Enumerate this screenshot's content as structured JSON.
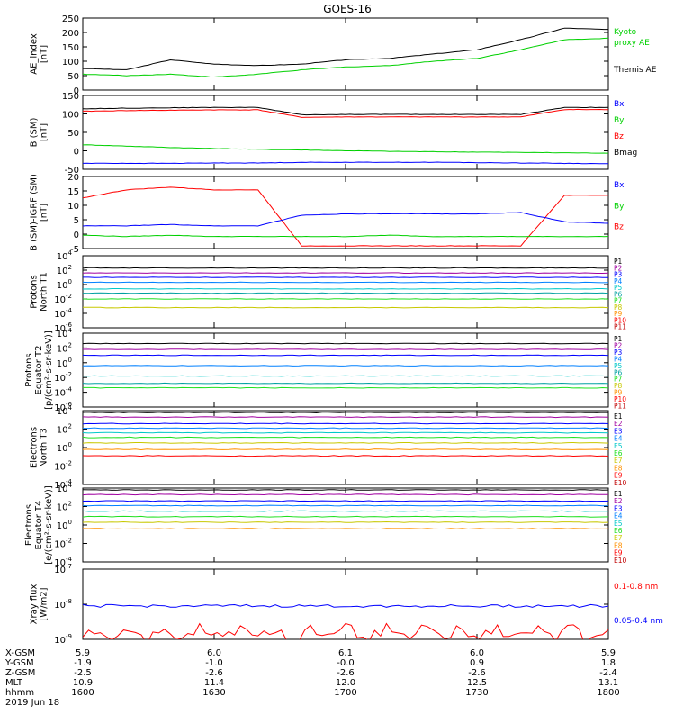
{
  "title": "GOES-16",
  "colors": {
    "axis": "#000000",
    "black": "#000000",
    "green": "#00d000",
    "blue": "#0000ff",
    "red": "#ff0000",
    "cyan": "#00c8c8",
    "lime": "#20e020",
    "yellow": "#c8c800",
    "orange": "#ff9000",
    "purple": "#a000a0",
    "navy": "#0000a0",
    "teal": "#00a0a0",
    "darkred": "#c00000"
  },
  "panels": [
    {
      "id": "ae",
      "ylabel": [
        "AE_index",
        "[nT]"
      ],
      "yticks": [
        "250",
        "200",
        "150",
        "100",
        "50",
        "0"
      ],
      "ylim": [
        0,
        250
      ],
      "legend": [
        {
          "text": "Kyoto",
          "color": "#00d000"
        },
        {
          "text": "proxy AE",
          "color": "#00d000"
        },
        {
          "text": "Themis AE",
          "color": "#000000"
        }
      ]
    },
    {
      "id": "bsm",
      "ylabel": [
        "B (SM)",
        "[nT]"
      ],
      "yticks": [
        "150",
        "100",
        "50",
        "0",
        "-50"
      ],
      "ylim": [
        -60,
        150
      ],
      "legend": [
        {
          "text": "Bx",
          "color": "#0000ff"
        },
        {
          "text": "By",
          "color": "#00d000"
        },
        {
          "text": "Bz",
          "color": "#ff0000"
        },
        {
          "text": "Bmag",
          "color": "#000000"
        }
      ]
    },
    {
      "id": "bigrf",
      "ylabel": [
        "B (SM)-IGRF (SM)",
        "[nT]"
      ],
      "yticks": [
        "20",
        "15",
        "10",
        "5",
        "0",
        "-5"
      ],
      "ylim": [
        -7,
        20
      ],
      "legend": [
        {
          "text": "Bx",
          "color": "#0000ff"
        },
        {
          "text": "By",
          "color": "#00d000"
        },
        {
          "text": "Bz",
          "color": "#ff0000"
        }
      ]
    },
    {
      "id": "pn",
      "ylabel": [
        "Protons",
        "North T1"
      ],
      "yticks": [
        "10",
        "10",
        "10",
        "10",
        "10",
        "10"
      ],
      "yexp": [
        "4",
        "2",
        "0",
        "-2",
        "-4",
        "-6"
      ],
      "ylim": [
        -6,
        4
      ],
      "legend": [
        {
          "text": "P1",
          "color": "#000000"
        },
        {
          "text": "P2",
          "color": "#a000a0"
        },
        {
          "text": "P3",
          "color": "#0000ff"
        },
        {
          "text": "P4",
          "color": "#0080ff"
        },
        {
          "text": "P5",
          "color": "#00c8c8"
        },
        {
          "text": "P6",
          "color": "#00a0a0"
        },
        {
          "text": "P7",
          "color": "#20e020"
        },
        {
          "text": "P8",
          "color": "#c8c800"
        },
        {
          "text": "P9",
          "color": "#ff9000"
        },
        {
          "text": "P10",
          "color": "#ff0000"
        },
        {
          "text": "P11",
          "color": "#c00000"
        }
      ]
    },
    {
      "id": "pe",
      "ylabel": [
        "Protons",
        "Equator T2",
        "[p/(cm²-s-sr-keV)]"
      ],
      "yticks": [
        "10",
        "10",
        "10",
        "10",
        "10",
        "10"
      ],
      "yexp": [
        "4",
        "2",
        "0",
        "-2",
        "-4",
        "-6"
      ],
      "ylim": [
        -6,
        4
      ],
      "legend": [
        {
          "text": "P1",
          "color": "#000000"
        },
        {
          "text": "P2",
          "color": "#a000a0"
        },
        {
          "text": "P3",
          "color": "#0000ff"
        },
        {
          "text": "P4",
          "color": "#0080ff"
        },
        {
          "text": "P5",
          "color": "#00c8c8"
        },
        {
          "text": "P6",
          "color": "#00a0a0"
        },
        {
          "text": "P7",
          "color": "#20e020"
        },
        {
          "text": "P8",
          "color": "#c8c800"
        },
        {
          "text": "P9",
          "color": "#ff9000"
        },
        {
          "text": "P10",
          "color": "#ff0000"
        },
        {
          "text": "P11",
          "color": "#c00000"
        }
      ]
    },
    {
      "id": "en",
      "ylabel": [
        "Electrons",
        "North T3"
      ],
      "yticks": [
        "10",
        "10",
        "10",
        "10",
        "10"
      ],
      "yexp": [
        "4",
        "2",
        "0",
        "-2",
        "-4"
      ],
      "ylim": [
        -4,
        4
      ],
      "legend": [
        {
          "text": "E1",
          "color": "#000000"
        },
        {
          "text": "E2",
          "color": "#a000a0"
        },
        {
          "text": "E3",
          "color": "#0000ff"
        },
        {
          "text": "E4",
          "color": "#0080ff"
        },
        {
          "text": "E5",
          "color": "#00c8c8"
        },
        {
          "text": "E6",
          "color": "#20e020"
        },
        {
          "text": "E7",
          "color": "#c8c800"
        },
        {
          "text": "E8",
          "color": "#ff9000"
        },
        {
          "text": "E9",
          "color": "#ff0000"
        },
        {
          "text": "E10",
          "color": "#c00000"
        }
      ]
    },
    {
      "id": "ee",
      "ylabel": [
        "Electrons",
        "Equator T4",
        "[e/(cm²-s-sr-keV)]"
      ],
      "yticks": [
        "10",
        "10",
        "10",
        "10",
        "10"
      ],
      "yexp": [
        "4",
        "2",
        "0",
        "-2",
        "-4"
      ],
      "ylim": [
        -4,
        4
      ],
      "legend": [
        {
          "text": "E1",
          "color": "#000000"
        },
        {
          "text": "E2",
          "color": "#a000a0"
        },
        {
          "text": "E3",
          "color": "#0000ff"
        },
        {
          "text": "E4",
          "color": "#0080ff"
        },
        {
          "text": "E5",
          "color": "#00c8c8"
        },
        {
          "text": "E6",
          "color": "#20e020"
        },
        {
          "text": "E7",
          "color": "#c8c800"
        },
        {
          "text": "E8",
          "color": "#ff9000"
        },
        {
          "text": "E9",
          "color": "#ff0000"
        },
        {
          "text": "E10",
          "color": "#c00000"
        }
      ]
    },
    {
      "id": "xray",
      "ylabel": [
        "Xray flux",
        "[W/m2]"
      ],
      "yticks": [
        "10",
        "10",
        "10"
      ],
      "yexp": [
        "-7",
        "-8",
        "-9"
      ],
      "ylim": [
        -9,
        -7
      ],
      "legend": [
        {
          "text": "0.1-0.8 nm",
          "color": "#ff0000"
        },
        {
          "text": "0.05-0.4 nm",
          "color": "#0000ff"
        }
      ]
    }
  ],
  "footer": {
    "rows": [
      {
        "label": "X-GSM",
        "values": [
          "5.9",
          "6.0",
          "6.1",
          "6.0",
          "5.9"
        ]
      },
      {
        "label": "Y-GSM",
        "values": [
          "-1.9",
          "-1.0",
          "-0.0",
          "0.9",
          "1.8"
        ]
      },
      {
        "label": "Z-GSM",
        "values": [
          "-2.5",
          "-2.6",
          "-2.6",
          "-2.6",
          "-2.4"
        ]
      },
      {
        "label": "MLT",
        "values": [
          "10.9",
          "11.4",
          "12.0",
          "12.5",
          "13.1"
        ]
      },
      {
        "label": "hhmm",
        "values": [
          "1600",
          "1630",
          "1700",
          "1730",
          "1800"
        ]
      }
    ],
    "date": "2019 Jun 18"
  },
  "chart_data": [
    {
      "type": "line",
      "name": "AE index",
      "x": [
        "1600",
        "1610",
        "1620",
        "1630",
        "1640",
        "1650",
        "1700",
        "1710",
        "1720",
        "1730",
        "1740",
        "1750",
        "1800"
      ],
      "series": [
        {
          "name": "Themis AE",
          "values": [
            75,
            70,
            105,
            90,
            85,
            90,
            105,
            110,
            125,
            140,
            175,
            215,
            210
          ]
        },
        {
          "name": "Kyoto proxy AE",
          "values": [
            55,
            50,
            55,
            45,
            55,
            70,
            80,
            85,
            100,
            110,
            140,
            175,
            180
          ]
        }
      ],
      "ylim": [
        0,
        250
      ]
    },
    {
      "type": "line",
      "name": "B (SM)",
      "x": [
        "1600",
        "1610",
        "1620",
        "1630",
        "1640",
        "1650",
        "1700",
        "1710",
        "1720",
        "1730",
        "1740",
        "1750",
        "1800"
      ],
      "series": [
        {
          "name": "Bmag",
          "values": [
            112,
            114,
            115,
            116,
            116,
            95,
            96,
            96,
            96,
            96,
            96,
            116,
            116
          ]
        },
        {
          "name": "Bz",
          "values": [
            105,
            107,
            108,
            109,
            109,
            88,
            89,
            89,
            89,
            89,
            89,
            110,
            110
          ]
        },
        {
          "name": "By",
          "values": [
            10,
            6,
            2,
            -1,
            -3,
            -5,
            -7,
            -9,
            -10,
            -11,
            -12,
            -13,
            -14
          ]
        },
        {
          "name": "Bx",
          "values": [
            -43,
            -43,
            -43,
            -42,
            -42,
            -40,
            -40,
            -40,
            -40,
            -41,
            -42,
            -43,
            -44
          ]
        }
      ],
      "ylim": [
        -60,
        150
      ]
    },
    {
      "type": "line",
      "name": "B (SM)-IGRF (SM)",
      "x": [
        "1600",
        "1610",
        "1620",
        "1630",
        "1640",
        "1650",
        "1700",
        "1710",
        "1720",
        "1730",
        "1740",
        "1750",
        "1800"
      ],
      "series": [
        {
          "name": "Bz",
          "values": [
            12,
            15,
            16,
            15,
            15,
            -6,
            -6,
            -6,
            -6,
            -6,
            -6,
            13,
            13
          ]
        },
        {
          "name": "Bx",
          "values": [
            1.5,
            1.5,
            2,
            1.5,
            1.5,
            5.5,
            6,
            6,
            6,
            6,
            6.5,
            3,
            2.5
          ]
        },
        {
          "name": "By",
          "values": [
            -2,
            -2.5,
            -2,
            -2.5,
            -2.5,
            -2.5,
            -2.5,
            -2,
            -2.5,
            -2.5,
            -2.5,
            -2.5,
            -2.5
          ]
        }
      ],
      "ylim": [
        -7,
        20
      ]
    },
    {
      "type": "line",
      "name": "Protons North T1",
      "ylog": true,
      "series": [
        {
          "name": "P1",
          "log10": 2.3
        },
        {
          "name": "P2",
          "log10": 1.6
        },
        {
          "name": "P3",
          "log10": 1.0
        },
        {
          "name": "P4",
          "log10": 0.3
        },
        {
          "name": "P5",
          "log10": -0.6
        },
        {
          "name": "P6",
          "log10": -1.2
        },
        {
          "name": "P7",
          "log10": -2.0
        },
        {
          "name": "P8",
          "log10": -3.2
        }
      ],
      "ylim": [
        -6,
        4
      ]
    },
    {
      "type": "line",
      "name": "Protons Equator T2",
      "ylog": true,
      "series": [
        {
          "name": "P1",
          "log10": 2.6
        },
        {
          "name": "P2",
          "log10": 1.8
        },
        {
          "name": "P3",
          "log10": 1.0
        },
        {
          "name": "P4",
          "log10": -0.4
        },
        {
          "name": "P5",
          "log10": -1.8
        },
        {
          "name": "P6",
          "log10": -2.8
        },
        {
          "name": "P7",
          "log10": -3.4
        }
      ],
      "ylim": [
        -6,
        4
      ]
    },
    {
      "type": "line",
      "name": "Electrons North T3",
      "ylog": true,
      "series": [
        {
          "name": "E1",
          "log10": 3.8
        },
        {
          "name": "E2",
          "log10": 3.3
        },
        {
          "name": "E3",
          "log10": 2.6
        },
        {
          "name": "E4",
          "log10": 2.1
        },
        {
          "name": "E5",
          "log10": 1.6
        },
        {
          "name": "E6",
          "log10": 1.1
        },
        {
          "name": "E7",
          "log10": 0.5
        },
        {
          "name": "E8",
          "log10": -0.2
        },
        {
          "name": "E9",
          "log10": -0.9
        }
      ],
      "ylim": [
        -4,
        4
      ]
    },
    {
      "type": "line",
      "name": "Electrons Equator T4",
      "ylog": true,
      "series": [
        {
          "name": "E1",
          "log10": 3.8
        },
        {
          "name": "E2",
          "log10": 3.3
        },
        {
          "name": "E3",
          "log10": 2.6
        },
        {
          "name": "E4",
          "log10": 2.1
        },
        {
          "name": "E5",
          "log10": 1.5
        },
        {
          "name": "E6",
          "log10": 0.9
        },
        {
          "name": "E7",
          "log10": 0.3
        },
        {
          "name": "E8",
          "log10": -0.4
        }
      ],
      "ylim": [
        -4,
        4
      ]
    },
    {
      "type": "line",
      "name": "Xray flux",
      "ylog": true,
      "series": [
        {
          "name": "0.05-0.4 nm",
          "log10": -8.05
        },
        {
          "name": "0.1-0.8 nm",
          "log10": -8.85
        }
      ],
      "ylim": [
        -9,
        -7
      ]
    }
  ]
}
